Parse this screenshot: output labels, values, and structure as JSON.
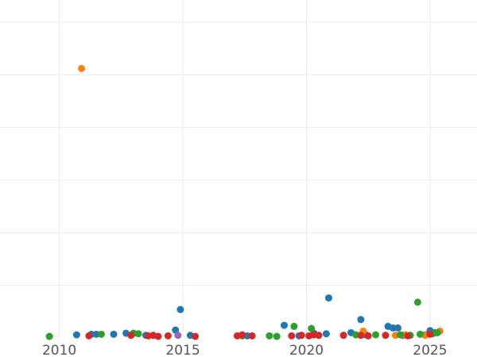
{
  "chart_data": {
    "type": "scatter",
    "title": "",
    "xlabel": "",
    "ylabel": "",
    "xlim": [
      2007.6,
      2026.9
    ],
    "ylim": [
      0,
      6
    ],
    "x_ticks": [
      2010,
      2015,
      2020,
      2025
    ],
    "y_grid": [
      0,
      1,
      2,
      3,
      4,
      5,
      6
    ],
    "grid": true,
    "legend": "none",
    "series": [
      {
        "color": "#1f77b4",
        "points": [
          [
            2010.7,
            0.06
          ],
          [
            2011.3,
            0.07
          ],
          [
            2011.5,
            0.07
          ],
          [
            2012.2,
            0.07
          ],
          [
            2012.7,
            0.09
          ],
          [
            2013.5,
            0.05
          ],
          [
            2014.7,
            0.15
          ],
          [
            2014.9,
            0.54
          ],
          [
            2015.3,
            0.05
          ],
          [
            2017.6,
            0.04
          ],
          [
            2019.1,
            0.24
          ],
          [
            2019.7,
            0.04
          ],
          [
            2020.3,
            0.09
          ],
          [
            2020.8,
            0.08
          ],
          [
            2020.9,
            0.76
          ],
          [
            2021.8,
            0.1
          ],
          [
            2022.2,
            0.35
          ],
          [
            2022.4,
            0.06
          ],
          [
            2023.3,
            0.22
          ],
          [
            2023.5,
            0.19
          ],
          [
            2023.7,
            0.19
          ],
          [
            2023.9,
            0.05
          ],
          [
            2024.8,
            0.06
          ],
          [
            2025.0,
            0.14
          ],
          [
            2025.2,
            0.1
          ]
        ]
      },
      {
        "color": "#ff7f0e",
        "points": [
          [
            2010.9,
            5.12
          ],
          [
            2022.3,
            0.13
          ],
          [
            2023.6,
            0.05
          ],
          [
            2024.0,
            0.06
          ],
          [
            2024.8,
            0.05
          ],
          [
            2025.4,
            0.13
          ]
        ]
      },
      {
        "color": "#2ca02c",
        "points": [
          [
            2009.6,
            0.03
          ],
          [
            2011.7,
            0.07
          ],
          [
            2013.0,
            0.09
          ],
          [
            2013.2,
            0.08
          ],
          [
            2017.4,
            0.04
          ],
          [
            2018.5,
            0.04
          ],
          [
            2018.8,
            0.03
          ],
          [
            2019.5,
            0.22
          ],
          [
            2020.2,
            0.18
          ],
          [
            2022.0,
            0.06
          ],
          [
            2022.8,
            0.06
          ],
          [
            2023.8,
            0.06
          ],
          [
            2024.2,
            0.05
          ],
          [
            2024.5,
            0.68
          ],
          [
            2024.6,
            0.07
          ],
          [
            2025.1,
            0.08
          ],
          [
            2025.3,
            0.1
          ]
        ]
      },
      {
        "color": "#d62728",
        "points": [
          [
            2011.2,
            0.04
          ],
          [
            2012.9,
            0.05
          ],
          [
            2013.6,
            0.04
          ],
          [
            2013.8,
            0.05
          ],
          [
            2014.0,
            0.03
          ],
          [
            2014.4,
            0.04
          ],
          [
            2015.5,
            0.03
          ],
          [
            2017.2,
            0.04
          ],
          [
            2017.4,
            0.06
          ],
          [
            2017.8,
            0.04
          ],
          [
            2019.4,
            0.04
          ],
          [
            2019.8,
            0.05
          ],
          [
            2020.1,
            0.04
          ],
          [
            2020.3,
            0.06
          ],
          [
            2020.5,
            0.05
          ],
          [
            2021.5,
            0.05
          ],
          [
            2022.2,
            0.05
          ],
          [
            2022.5,
            0.04
          ],
          [
            2023.2,
            0.05
          ],
          [
            2024.1,
            0.04
          ],
          [
            2025.0,
            0.07
          ]
        ]
      },
      {
        "color": "#9467bd",
        "points": [
          [
            2014.8,
            0.05
          ]
        ]
      }
    ]
  }
}
